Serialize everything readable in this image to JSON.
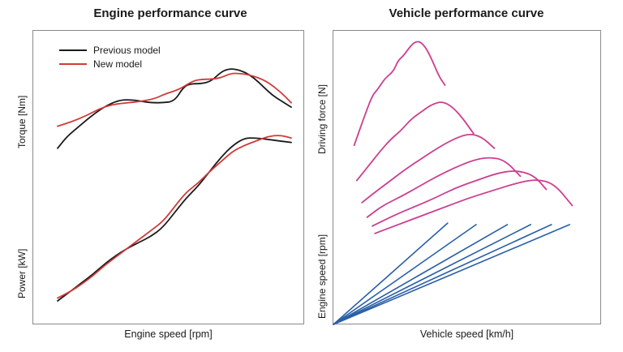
{
  "chart_data": [
    {
      "type": "line",
      "title": "Engine performance curve",
      "xlabel": "Engine speed [rpm]",
      "ylabels": [
        "Torque [Nm]",
        "Power [kW]"
      ],
      "xlim": [
        0,
        100
      ],
      "ylim": [
        0,
        100
      ],
      "legend": "top-left",
      "grid": false,
      "series": [
        {
          "name": "Previous model",
          "group": "torque",
          "color": "#1a1a1a",
          "x": [
            0,
            4,
            10,
            16,
            22,
            27,
            32,
            36,
            40,
            45,
            50,
            54,
            57,
            62,
            66,
            70,
            73,
            76,
            80,
            84,
            88,
            92,
            96,
            100
          ],
          "y": [
            60,
            64,
            68,
            72,
            75,
            76.5,
            76.5,
            76,
            75.5,
            75.5,
            76,
            81,
            82,
            82,
            83,
            86,
            87,
            87,
            86,
            84,
            81,
            78,
            76,
            74
          ]
        },
        {
          "name": "New model",
          "group": "torque",
          "color": "#d03a3a",
          "x": [
            0,
            6,
            12,
            18,
            24,
            30,
            36,
            42,
            46,
            52,
            58,
            62,
            66,
            70,
            74,
            78,
            82,
            86,
            90,
            95,
            100
          ],
          "y": 67.5,
          "y_list": [
            67.5,
            69,
            71,
            73.5,
            75,
            75.5,
            76,
            77,
            78.5,
            80,
            83,
            83.5,
            83.5,
            84,
            85.5,
            85.5,
            85,
            84,
            82.5,
            79.5,
            75.5
          ]
        },
        {
          "name": "Previous model",
          "group": "power",
          "color": "#1a1a1a",
          "x": [
            0,
            5,
            10,
            15,
            20,
            25,
            30,
            35,
            40,
            45,
            50,
            55,
            60,
            65,
            70,
            75,
            80,
            85,
            90,
            95,
            100
          ],
          "y": [
            8,
            11,
            14,
            17,
            20.5,
            23.5,
            26,
            28,
            30,
            33,
            38,
            43,
            47,
            52,
            57,
            61,
            63.5,
            63.5,
            63,
            62.5,
            62
          ]
        },
        {
          "name": "New model",
          "group": "power",
          "color": "#d03a3a",
          "x": [
            0,
            5,
            10,
            15,
            20,
            25,
            30,
            35,
            40,
            45,
            50,
            55,
            60,
            65,
            70,
            75,
            80,
            85,
            90,
            95,
            100
          ],
          "y": [
            9,
            11,
            13.5,
            16.5,
            20,
            23,
            26,
            29,
            32,
            35,
            40,
            45,
            48,
            52,
            55.5,
            59,
            61,
            62.5,
            64,
            64.5,
            63.5
          ]
        }
      ],
      "legend_entries": [
        "Previous model",
        "New model"
      ]
    },
    {
      "type": "line",
      "title": "Vehicle performance curve",
      "xlabel": "Vehicle speed [km/h]",
      "ylabels": [
        "Driving force [N]",
        "Engine speed [rpm]"
      ],
      "xlim": [
        0,
        100
      ],
      "ylim": [
        0,
        100
      ],
      "grid": false,
      "series": [
        {
          "name": "force-gear-1",
          "group": "force",
          "color": "#cc3f8f",
          "x": [
            8,
            12,
            15,
            17,
            20,
            23,
            25,
            27,
            29,
            31,
            33,
            35,
            37,
            39,
            41,
            43
          ],
          "y": [
            61,
            71,
            78,
            80,
            84,
            86,
            90,
            91.5,
            94,
            96,
            96.5,
            95,
            92,
            88,
            84,
            81.5
          ]
        },
        {
          "name": "force-gear-2",
          "group": "force",
          "color": "#cc3f8f",
          "x": [
            9,
            14,
            18,
            22,
            26,
            30,
            34,
            38,
            42,
            46,
            50,
            54
          ],
          "y": [
            49,
            54.5,
            59,
            63,
            66,
            70,
            72.5,
            75,
            76,
            74,
            70,
            65
          ]
        },
        {
          "name": "force-gear-3",
          "group": "force",
          "color": "#cc3f8f",
          "x": [
            11,
            16,
            22,
            28,
            34,
            40,
            46,
            52,
            57,
            62
          ],
          "y": [
            41.5,
            45,
            49,
            53,
            56.5,
            60,
            63,
            65,
            64,
            60
          ]
        },
        {
          "name": "force-gear-4",
          "group": "force",
          "color": "#cc3f8f",
          "x": [
            13,
            19,
            26,
            33,
            40,
            47,
            54,
            60,
            66,
            72
          ],
          "y": [
            36.5,
            40.5,
            43.5,
            47,
            50.5,
            53.5,
            56,
            57,
            56,
            50.5
          ]
        },
        {
          "name": "force-gear-5",
          "group": "force",
          "color": "#cc3f8f",
          "x": [
            15,
            23,
            31,
            39,
            47,
            55,
            63,
            70,
            77,
            82
          ],
          "y": [
            33.5,
            37,
            40,
            43,
            46.5,
            49,
            51.5,
            52.5,
            51,
            46
          ]
        },
        {
          "name": "force-gear-6",
          "group": "force",
          "color": "#cc3f8f",
          "x": [
            16,
            25,
            34,
            43,
            52,
            61,
            70,
            78,
            85,
            92
          ],
          "y": [
            31,
            34,
            37,
            40,
            43,
            45.5,
            48,
            49.5,
            48,
            40.5
          ]
        },
        {
          "name": "speed-gear-1",
          "group": "speed",
          "color": "#2a5fa8",
          "x": [
            0,
            44
          ],
          "y": [
            0,
            34.5
          ]
        },
        {
          "name": "speed-gear-2",
          "group": "speed",
          "color": "#2a5fa8",
          "x": [
            0,
            55
          ],
          "y": [
            0,
            34
          ]
        },
        {
          "name": "speed-gear-3",
          "group": "speed",
          "color": "#2a5fa8",
          "x": [
            0,
            67
          ],
          "y": [
            0,
            34
          ]
        },
        {
          "name": "speed-gear-4",
          "group": "speed",
          "color": "#2a5fa8",
          "x": [
            0,
            76
          ],
          "y": [
            0,
            34
          ]
        },
        {
          "name": "speed-gear-5",
          "group": "speed",
          "color": "#2a5fa8",
          "x": [
            0,
            84
          ],
          "y": [
            0,
            34
          ]
        },
        {
          "name": "speed-gear-6",
          "group": "speed",
          "color": "#2a5fa8",
          "x": [
            0,
            91
          ],
          "y": [
            0,
            34
          ]
        }
      ]
    }
  ]
}
